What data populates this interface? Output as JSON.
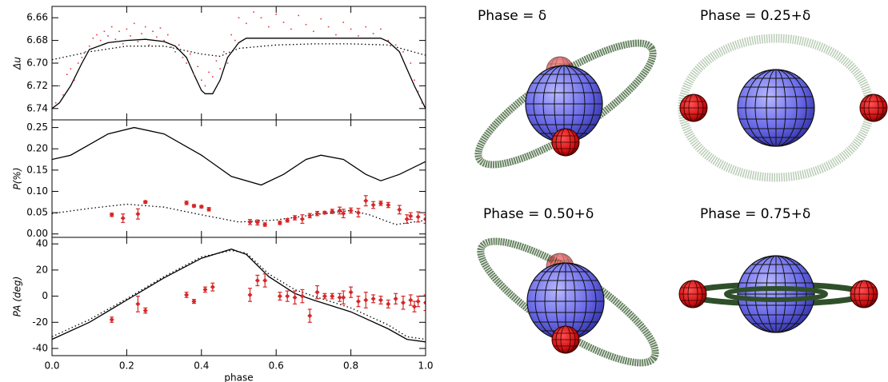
{
  "chart_data": [
    {
      "type": "line",
      "ylabel": "Δu",
      "xlim": [
        0,
        1
      ],
      "xticks": [
        {
          "value": 0,
          "label": "0.0"
        },
        0.2,
        0.4,
        0.6,
        0.8,
        {
          "value": 1,
          "label": "1.0"
        }
      ],
      "ylim": [
        6.75,
        6.65
      ],
      "yticks": [
        6.66,
        6.68,
        {
          "value": 6.7,
          "label": "6.70"
        },
        6.72,
        6.74
      ],
      "series": [
        {
          "color": "#000000",
          "dash": "solid",
          "x": [
            0,
            0.02,
            0.05,
            0.08,
            0.1,
            0.15,
            0.2,
            0.25,
            0.3,
            0.33,
            0.36,
            0.38,
            0.4,
            0.41,
            0.43,
            0.45,
            0.47,
            0.5,
            0.52,
            0.6,
            0.7,
            0.8,
            0.88,
            0.9,
            0.93,
            0.95,
            0.97,
            1.0
          ],
          "values": [
            6.74,
            6.735,
            6.72,
            6.7,
            6.688,
            6.682,
            6.68,
            6.679,
            6.681,
            6.685,
            6.695,
            6.71,
            6.724,
            6.727,
            6.727,
            6.715,
            6.695,
            6.682,
            6.678,
            6.678,
            6.678,
            6.678,
            6.678,
            6.681,
            6.69,
            6.705,
            6.72,
            6.74
          ]
        },
        {
          "color": "#000000",
          "dash": "dotted",
          "x": [
            0,
            0.1,
            0.2,
            0.3,
            0.4,
            0.45,
            0.5,
            0.6,
            0.7,
            0.8,
            0.9,
            1.0
          ],
          "values": [
            6.697,
            6.69,
            6.685,
            6.685,
            6.692,
            6.694,
            6.687,
            6.684,
            6.683,
            6.683,
            6.684,
            6.693
          ]
        }
      ],
      "points": {
        "color": "#e0393e",
        "x": [
          0.01,
          0.02,
          0.03,
          0.04,
          0.05,
          0.06,
          0.07,
          0.08,
          0.09,
          0.1,
          0.11,
          0.12,
          0.13,
          0.14,
          0.15,
          0.16,
          0.17,
          0.18,
          0.19,
          0.2,
          0.21,
          0.22,
          0.23,
          0.24,
          0.25,
          0.26,
          0.27,
          0.28,
          0.29,
          0.3,
          0.31,
          0.32,
          0.33,
          0.34,
          0.35,
          0.36,
          0.37,
          0.38,
          0.39,
          0.4,
          0.41,
          0.42,
          0.43,
          0.44,
          0.45,
          0.46,
          0.47,
          0.48,
          0.49,
          0.5,
          0.52,
          0.54,
          0.56,
          0.58,
          0.6,
          0.62,
          0.64,
          0.66,
          0.68,
          0.7,
          0.72,
          0.74,
          0.76,
          0.78,
          0.8,
          0.82,
          0.84,
          0.86,
          0.88,
          0.9,
          0.92,
          0.94,
          0.96,
          0.97,
          0.98,
          0.99
        ],
        "values": [
          6.735,
          6.72,
          6.728,
          6.71,
          6.705,
          6.715,
          6.7,
          6.695,
          6.69,
          6.685,
          6.678,
          6.675,
          6.68,
          6.672,
          6.676,
          6.668,
          6.679,
          6.672,
          6.683,
          6.67,
          6.676,
          6.665,
          6.681,
          6.674,
          6.668,
          6.684,
          6.672,
          6.677,
          6.669,
          6.68,
          6.675,
          6.686,
          6.69,
          6.684,
          6.695,
          6.7,
          6.692,
          6.71,
          6.703,
          6.715,
          6.72,
          6.708,
          6.712,
          6.698,
          6.705,
          6.69,
          6.7,
          6.675,
          6.68,
          6.66,
          6.665,
          6.655,
          6.66,
          6.668,
          6.657,
          6.664,
          6.67,
          6.658,
          6.666,
          6.672,
          6.661,
          6.668,
          6.675,
          6.664,
          6.67,
          6.676,
          6.668,
          6.674,
          6.67,
          6.68,
          6.684,
          6.69,
          6.7,
          6.715,
          6.725,
          6.735
        ]
      }
    },
    {
      "type": "line",
      "ylabel": "P(%)",
      "xlim": [
        0,
        1
      ],
      "xticks": [
        {
          "value": 0,
          "label": "0.0"
        },
        0.2,
        0.4,
        0.6,
        0.8,
        {
          "value": 1,
          "label": "1.0"
        }
      ],
      "ylim": [
        -0.008,
        0.268
      ],
      "yticks": [
        {
          "value": 0,
          "label": "0.00"
        },
        0.05,
        {
          "value": 0.1,
          "label": "0.10"
        },
        0.15,
        {
          "value": 0.2,
          "label": "0.20"
        },
        0.25
      ],
      "series": [
        {
          "color": "#000000",
          "dash": "solid",
          "x": [
            0,
            0.05,
            0.1,
            0.15,
            0.22,
            0.3,
            0.4,
            0.48,
            0.56,
            0.62,
            0.68,
            0.72,
            0.78,
            0.84,
            0.88,
            0.93,
            1.0
          ],
          "values": [
            0.175,
            0.185,
            0.21,
            0.235,
            0.25,
            0.235,
            0.185,
            0.135,
            0.115,
            0.14,
            0.175,
            0.185,
            0.175,
            0.14,
            0.125,
            0.14,
            0.17
          ]
        },
        {
          "color": "#000000",
          "dash": "dotted",
          "x": [
            0,
            0.1,
            0.2,
            0.3,
            0.4,
            0.5,
            0.6,
            0.7,
            0.8,
            0.85,
            0.92,
            1.0
          ],
          "values": [
            0.048,
            0.06,
            0.07,
            0.063,
            0.045,
            0.028,
            0.033,
            0.045,
            0.055,
            0.045,
            0.022,
            0.032
          ]
        }
      ],
      "points": {
        "color": "#d62728",
        "x": [
          0.16,
          0.19,
          0.23,
          0.25,
          0.36,
          0.38,
          0.4,
          0.42,
          0.53,
          0.55,
          0.57,
          0.61,
          0.63,
          0.65,
          0.67,
          0.69,
          0.71,
          0.73,
          0.75,
          0.77,
          0.78,
          0.8,
          0.82,
          0.84,
          0.86,
          0.88,
          0.9,
          0.93,
          0.95,
          0.96,
          0.98,
          1.0
        ],
        "values": [
          0.045,
          0.037,
          0.047,
          0.075,
          0.073,
          0.066,
          0.064,
          0.058,
          0.028,
          0.027,
          0.022,
          0.026,
          0.032,
          0.038,
          0.035,
          0.043,
          0.048,
          0.05,
          0.053,
          0.055,
          0.048,
          0.055,
          0.05,
          0.078,
          0.068,
          0.072,
          0.068,
          0.057,
          0.035,
          0.042,
          0.04,
          0.035
        ],
        "errors": [
          0.004,
          0.01,
          0.012,
          0.003,
          0.004,
          0.003,
          0.003,
          0.004,
          0.006,
          0.006,
          0.004,
          0.004,
          0.004,
          0.005,
          0.01,
          0.005,
          0.005,
          0.003,
          0.005,
          0.008,
          0.01,
          0.006,
          0.01,
          0.012,
          0.008,
          0.005,
          0.006,
          0.01,
          0.01,
          0.008,
          0.012,
          0.01
        ]
      }
    },
    {
      "type": "line",
      "ylabel": "PA (deg)",
      "xlabel": "phase",
      "xlim": [
        0,
        1
      ],
      "xticks": [
        {
          "value": 0,
          "label": "0.0"
        },
        0.2,
        0.4,
        0.6,
        0.8,
        {
          "value": 1,
          "label": "1.0"
        }
      ],
      "ylim": [
        -45.5,
        45
      ],
      "yticks": [
        -40,
        -20,
        0,
        20,
        40
      ],
      "series": [
        {
          "color": "#000000",
          "dash": "solid",
          "x": [
            0,
            0.1,
            0.2,
            0.3,
            0.4,
            0.48,
            0.52,
            0.58,
            0.65,
            0.7,
            0.8,
            0.9,
            0.95,
            1.0
          ],
          "values": [
            -33,
            -20,
            -3,
            14,
            29,
            36,
            32,
            15,
            2,
            -3,
            -12,
            -25,
            -33,
            -35
          ]
        },
        {
          "color": "#000000",
          "dash": "dotted",
          "x": [
            0,
            0.1,
            0.2,
            0.3,
            0.4,
            0.48,
            0.52,
            0.58,
            0.65,
            0.7,
            0.8,
            0.9,
            0.95,
            1.0
          ],
          "values": [
            -31,
            -18,
            -2,
            15,
            30,
            35,
            33,
            17,
            5,
            0,
            -9,
            -22,
            -31,
            -33
          ]
        }
      ],
      "points": {
        "color": "#d62728",
        "x": [
          0.16,
          0.23,
          0.25,
          0.36,
          0.38,
          0.41,
          0.43,
          0.53,
          0.55,
          0.57,
          0.61,
          0.63,
          0.65,
          0.67,
          0.69,
          0.71,
          0.73,
          0.75,
          0.77,
          0.78,
          0.8,
          0.82,
          0.84,
          0.86,
          0.88,
          0.9,
          0.92,
          0.94,
          0.96,
          0.97,
          0.98,
          1.0
        ],
        "values": [
          -18,
          -6,
          -11,
          1,
          -4,
          5,
          7,
          1,
          12,
          12,
          0,
          0,
          -1,
          0,
          -15,
          3,
          0,
          0,
          -1,
          -1,
          3,
          -4,
          -3,
          -2,
          -3,
          -6,
          -2,
          -5,
          -3,
          -8,
          -4,
          -5
        ],
        "errors": [
          2,
          6,
          2,
          2,
          1.5,
          2,
          3,
          5,
          4,
          5,
          3,
          4,
          5,
          5,
          5,
          5,
          2,
          2,
          3,
          5,
          4,
          4,
          6,
          3,
          3,
          3,
          4,
          5,
          4,
          4,
          4,
          6
        ]
      }
    }
  ],
  "illustrations": [
    {
      "label": "Phase = δ"
    },
    {
      "label": "Phase = 0.25+δ"
    },
    {
      "label": "Phase = 0.50+δ"
    },
    {
      "label": "Phase = 0.75+δ"
    }
  ]
}
